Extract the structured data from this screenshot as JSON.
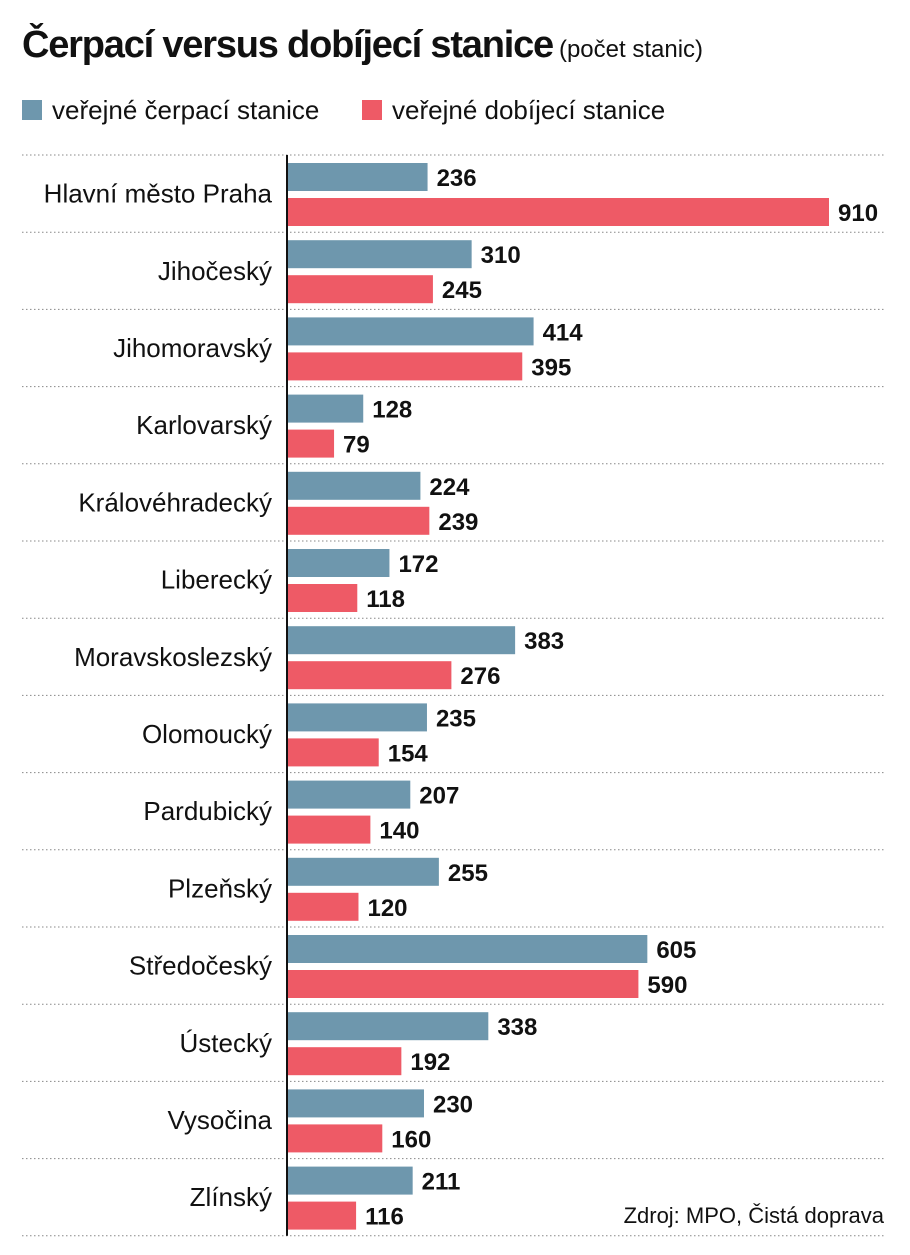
{
  "chart_data": {
    "type": "bar",
    "orientation": "horizontal",
    "title": "Čerpací versus dobíjecí stanice",
    "subtitle": "(počet stanic)",
    "categories": [
      "Hlavní město Praha",
      "Jihočeský",
      "Jihomoravský",
      "Karlovarský",
      "Královéhradecký",
      "Liberecký",
      "Moravskoslezský",
      "Olomoucký",
      "Pardubický",
      "Plzeňský",
      "Středočeský",
      "Ústecký",
      "Vysočina",
      "Zlínský"
    ],
    "series": [
      {
        "name": "veřejné čerpací stanice",
        "color": "#6e97ad",
        "values": [
          236,
          310,
          414,
          128,
          224,
          172,
          383,
          235,
          207,
          255,
          605,
          338,
          230,
          211
        ]
      },
      {
        "name": "veřejné dobíjecí stanice",
        "color": "#ee5a66",
        "values": [
          910,
          245,
          395,
          79,
          239,
          118,
          276,
          154,
          140,
          120,
          590,
          192,
          160,
          116
        ]
      }
    ],
    "xlim": [
      0,
      910
    ],
    "data_labels": true,
    "grid": false,
    "legend_placement": "top-left",
    "source": "Zdroj: MPO, Čistá doprava"
  }
}
